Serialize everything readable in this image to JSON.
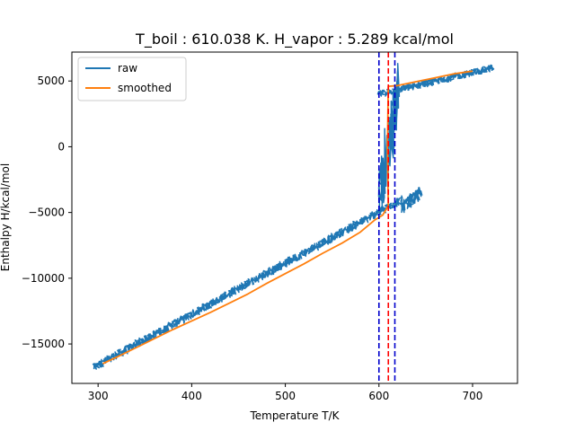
{
  "chart_data": {
    "type": "line",
    "title": "T_boil : 610.038 K. H_vapor : 5.289 kcal/mol",
    "xlabel": "Temperature T/K",
    "ylabel": "Enthalpy H/kcal/mol",
    "xlim": [
      272,
      748
    ],
    "ylim": [
      -18000,
      7200
    ],
    "xticks": [
      300,
      400,
      500,
      600,
      700
    ],
    "yticks": [
      -15000,
      -10000,
      -5000,
      0,
      5000
    ],
    "legend": {
      "position": "top-left",
      "entries": [
        "raw",
        "smoothed"
      ]
    },
    "colors": {
      "raw": "#1f77b4",
      "smoothed": "#ff7f0e",
      "boil_line": "#ff0000",
      "bound_lines": "#0000cc"
    },
    "series": [
      {
        "name": "raw",
        "segments": [
          {
            "x0": 295,
            "x1": 625,
            "y0": -16800,
            "y1": -4000,
            "noise": 300
          },
          {
            "x0": 625,
            "x1": 645,
            "y0": -4600,
            "y1": -3500,
            "noise": 500
          },
          {
            "x0": 600,
            "x1": 622,
            "y0": -3500,
            "y1": 4400,
            "noise": 2200
          },
          {
            "x0": 600,
            "x1": 722,
            "y0": 4000,
            "y1": 6000,
            "noise": 250
          }
        ]
      },
      {
        "name": "smoothed",
        "points": [
          [
            305,
            -16500
          ],
          [
            320,
            -16000
          ],
          [
            340,
            -15300
          ],
          [
            360,
            -14600
          ],
          [
            380,
            -13900
          ],
          [
            400,
            -13250
          ],
          [
            420,
            -12600
          ],
          [
            440,
            -11900
          ],
          [
            460,
            -11200
          ],
          [
            480,
            -10400
          ],
          [
            500,
            -9650
          ],
          [
            520,
            -8900
          ],
          [
            540,
            -8100
          ],
          [
            560,
            -7350
          ],
          [
            580,
            -6500
          ],
          [
            595,
            -5600
          ],
          [
            604,
            -5200
          ],
          [
            610,
            -4500
          ],
          [
            609,
            0
          ],
          [
            610,
            4600
          ],
          [
            620,
            4650
          ],
          [
            640,
            4950
          ],
          [
            660,
            5250
          ],
          [
            680,
            5550
          ],
          [
            700,
            5750
          ]
        ]
      }
    ],
    "vertical_lines": [
      {
        "x": 610.038,
        "color": "#ff0000",
        "style": "dashed"
      },
      {
        "x": 600,
        "color": "#0000cc",
        "style": "dashed"
      },
      {
        "x": 617,
        "color": "#0000cc",
        "style": "dashed"
      }
    ]
  }
}
